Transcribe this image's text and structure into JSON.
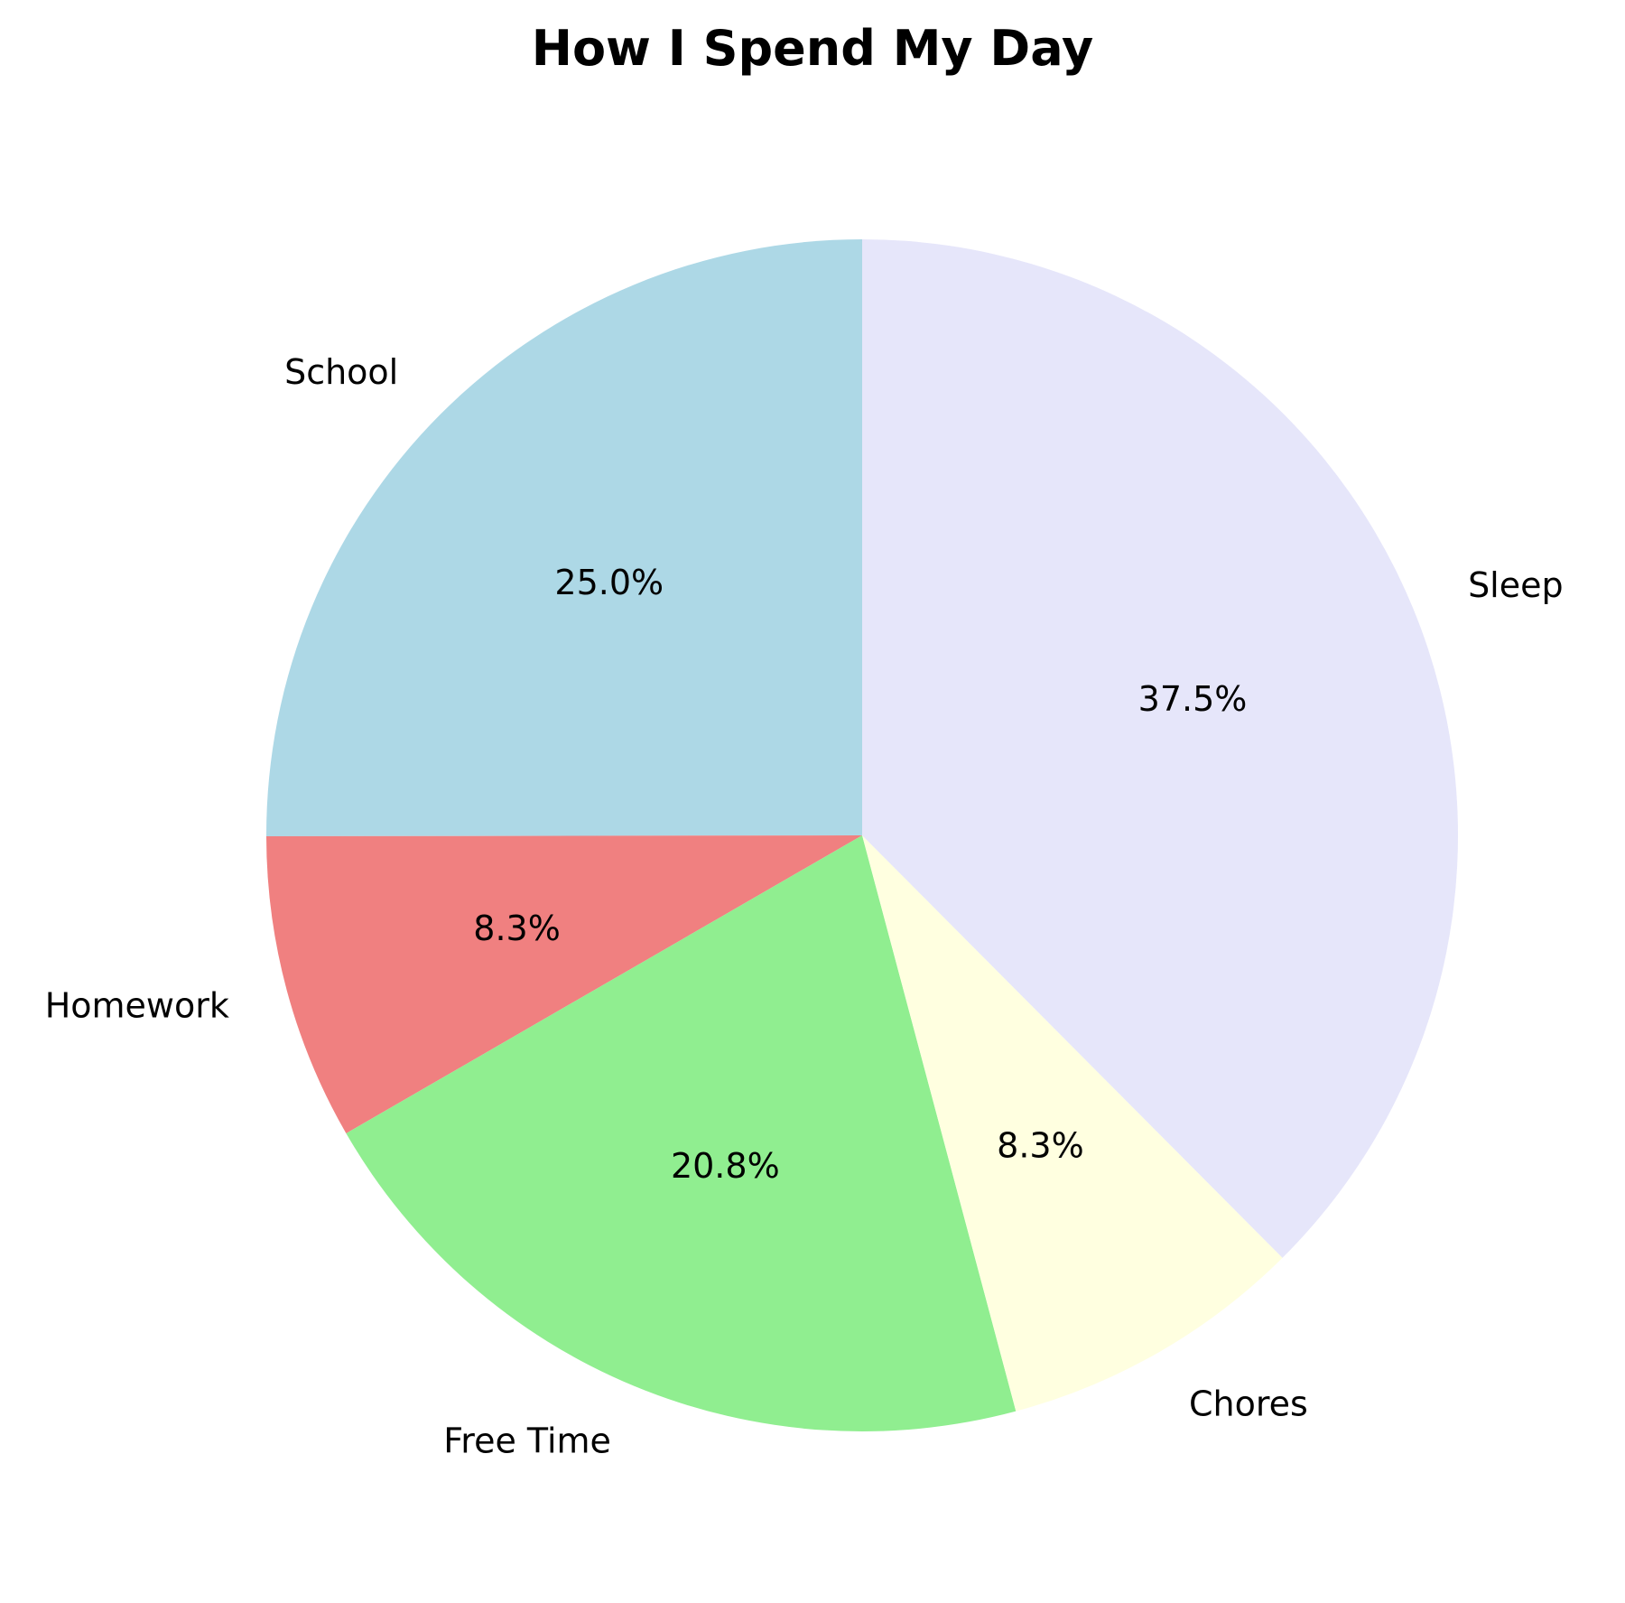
{
  "chart_data": {
    "type": "pie",
    "title": "How I Spend My Day",
    "slices": [
      {
        "label": "School",
        "value": 25.0,
        "pct_label": "25.0%",
        "color": "#add8e6"
      },
      {
        "label": "Homework",
        "value": 8.3,
        "pct_label": "8.3%",
        "color": "#f08080"
      },
      {
        "label": "Free Time",
        "value": 20.8,
        "pct_label": "20.8%",
        "color": "#90ee90"
      },
      {
        "label": "Chores",
        "value": 8.3,
        "pct_label": "8.3%",
        "color": "#ffffe0"
      },
      {
        "label": "Sleep",
        "value": 37.5,
        "pct_label": "37.5%",
        "color": "#e6e6fa"
      }
    ],
    "start_angle_deg": 90,
    "direction": "counterclockwise",
    "legend": "none"
  }
}
